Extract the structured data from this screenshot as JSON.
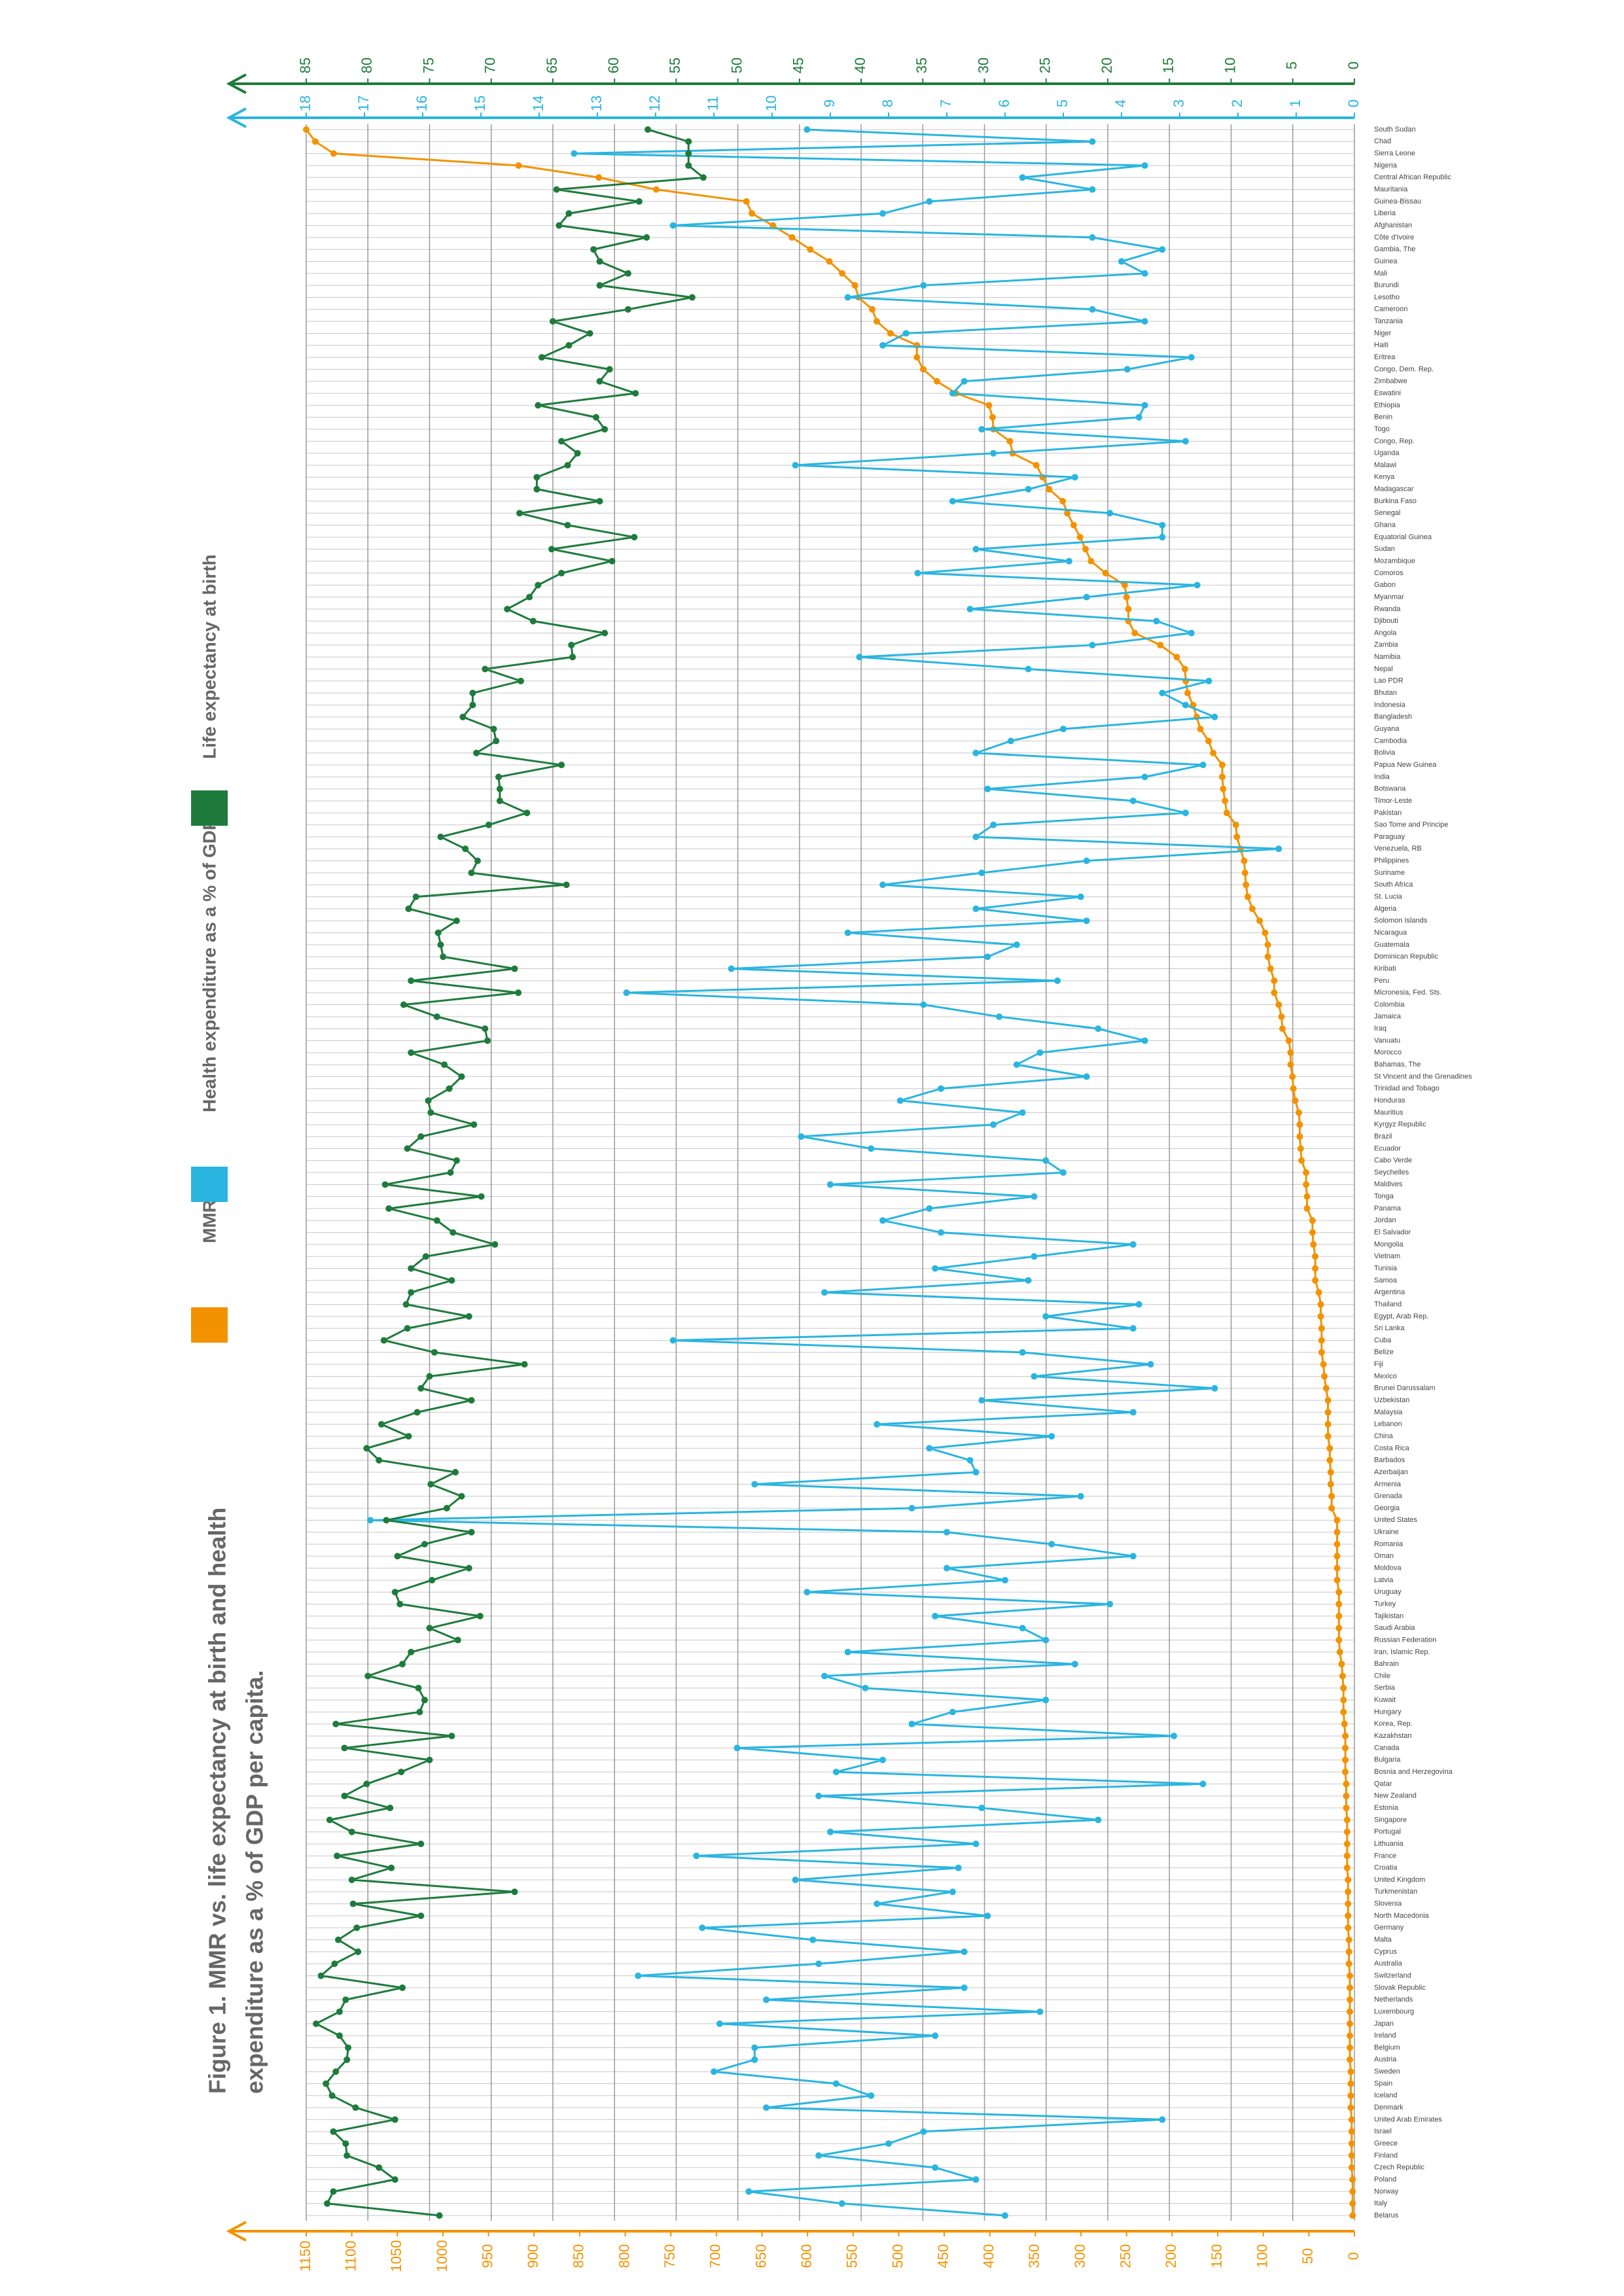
{
  "chart_data": {
    "type": "line",
    "title_lines": [
      "Figure 1. MMR vs. life expectancy at birth and health",
      "expenditure as a % of GDP per capita."
    ],
    "categories": [
      "South Sudan",
      "Chad",
      "Sierra Leone",
      "Nigeria",
      "Central African Republic",
      "Mauritania",
      "Guinea-Bissau",
      "Liberia",
      "Afghanistan",
      "Côte d'Ivoire",
      "Gambia, The",
      "Guinea",
      "Mali",
      "Burundi",
      "Lesotho",
      "Cameroon",
      "Tanzania",
      "Niger",
      "Haiti",
      "Eritrea",
      "Congo, Dem. Rep.",
      "Zimbabwe",
      "Eswatini",
      "Ethiopia",
      "Benin",
      "Togo",
      "Congo, Rep.",
      "Uganda",
      "Malawi",
      "Kenya",
      "Madagascar",
      "Burkina Faso",
      "Senegal",
      "Ghana",
      "Equatorial Guinea",
      "Sudan",
      "Mozambique",
      "Comoros",
      "Gabon",
      "Myanmar",
      "Rwanda",
      "Djibouti",
      "Angola",
      "Zambia",
      "Namibia",
      "Nepal",
      "Lao PDR",
      "Bhutan",
      "Indonesia",
      "Bangladesh",
      "Guyana",
      "Cambodia",
      "Bolivia",
      "Papua New Guinea",
      "India",
      "Botswana",
      "Timor-Leste",
      "Pakistan",
      "Sao Tome and Principe",
      "Paraguay",
      "Venezuela, RB",
      "Philippines",
      "Suriname",
      "South Africa",
      "St. Lucia",
      "Algeria",
      "Solomon Islands",
      "Nicaragua",
      "Guatemala",
      "Dominican Republic",
      "Kiribati",
      "Peru",
      "Micronesia, Fed. Sts.",
      "Colombia",
      "Jamaica",
      "Iraq",
      "Vanuatu",
      "Morocco",
      "Bahamas, The",
      "St Vincent and the Grenadines",
      "Trinidad and Tobago",
      "Honduras",
      "Mauritius",
      "Kyrgyz Republic",
      "Brazil",
      "Ecuador",
      "Cabo Verde",
      "Seychelles",
      "Maldives",
      "Tonga",
      "Panama",
      "Jordan",
      "El Salvador",
      "Mongolia",
      "Vietnam",
      "Tunisia",
      "Samoa",
      "Argentina",
      "Thailand",
      "Egypt, Arab Rep.",
      "Sri Lanka",
      "Cuba",
      "Belize",
      "Fiji",
      "Mexico",
      "Brunei Darussalam",
      "Uzbekistan",
      "Malaysia",
      "Lebanon",
      "China",
      "Costa Rica",
      "Barbados",
      "Azerbaijan",
      "Armenia",
      "Grenada",
      "Georgia",
      "United States",
      "Ukraine",
      "Romania",
      "Oman",
      "Moldova",
      "Latvia",
      "Uruguay",
      "Turkey",
      "Tajikistan",
      "Saudi Arabia",
      "Russian Federation",
      "Iran, Islamic Rep.",
      "Bahrain",
      "Chile",
      "Serbia",
      "Kuwait",
      "Hungary",
      "Korea, Rep.",
      "Kazakhstan",
      "Canada",
      "Bulgaria",
      "Bosnia and Herzegovina",
      "Qatar",
      "New Zealand",
      "Estonia",
      "Singapore",
      "Portugal",
      "Lithuania",
      "France",
      "Croatia",
      "United Kingdom",
      "Turkmenistan",
      "Slovenia",
      "North Macedonia",
      "Germany",
      "Malta",
      "Cyprus",
      "Australia",
      "Switzerland",
      "Slovak Republic",
      "Netherlands",
      "Luxembourg",
      "Japan",
      "Ireland",
      "Belgium",
      "Austria",
      "Sweden",
      "Spain",
      "Iceland",
      "Denmark",
      "United Arab Emirates",
      "Israel",
      "Greece",
      "Finland",
      "Czech Republic",
      "Poland",
      "Norway",
      "Italy",
      "Belarus"
    ],
    "series": [
      {
        "name": "MMR",
        "color": "#f39200",
        "axis": "y",
        "values": [
          1150,
          1140,
          1120,
          917,
          829,
          766,
          667,
          661,
          638,
          617,
          597,
          576,
          562,
          548,
          544,
          529,
          524,
          509,
          480,
          480,
          473,
          458,
          437,
          401,
          397,
          396,
          378,
          375,
          349,
          342,
          335,
          320,
          315,
          308,
          301,
          295,
          289,
          273,
          252,
          250,
          248,
          248,
          241,
          213,
          195,
          186,
          185,
          183,
          177,
          173,
          169,
          160,
          155,
          145,
          145,
          144,
          142,
          140,
          130,
          129,
          125,
          121,
          120,
          119,
          117,
          112,
          104,
          98,
          95,
          95,
          92,
          88,
          88,
          83,
          80,
          79,
          72,
          70,
          70,
          68,
          67,
          65,
          61,
          60,
          60,
          59,
          58,
          53,
          53,
          52,
          52,
          46,
          46,
          45,
          43,
          43,
          43,
          39,
          37,
          37,
          36,
          36,
          36,
          34,
          33,
          31,
          29,
          29,
          29,
          29,
          27,
          27,
          26,
          26,
          25,
          25,
          19,
          19,
          19,
          19,
          19,
          19,
          17,
          17,
          17,
          17,
          17,
          16,
          14,
          13,
          12,
          12,
          12,
          11,
          10,
          10,
          10,
          10,
          9,
          9,
          9,
          8,
          8,
          8,
          8,
          8,
          7,
          7,
          7,
          7,
          7,
          6,
          6,
          6,
          5,
          5,
          5,
          5,
          5,
          5,
          5,
          5,
          4,
          4,
          4,
          4,
          3,
          3,
          3,
          3,
          3,
          2,
          2,
          2,
          2
        ]
      },
      {
        "name": "Health expenditure as a % of GDP",
        "color": "#29b5e0",
        "axis": "y3",
        "values": [
          9.4,
          4.5,
          13.4,
          3.6,
          5.7,
          4.5,
          7.3,
          8.1,
          11.7,
          4.5,
          3.3,
          4.0,
          3.6,
          7.4,
          8.7,
          4.5,
          3.6,
          7.7,
          8.1,
          2.8,
          3.9,
          6.7,
          6.9,
          3.6,
          3.7,
          6.4,
          2.9,
          6.2,
          9.6,
          4.8,
          5.6,
          6.9,
          4.2,
          3.3,
          3.3,
          6.5,
          4.9,
          7.5,
          2.7,
          4.6,
          6.6,
          3.4,
          2.8,
          4.5,
          8.5,
          5.6,
          2.5,
          3.3,
          2.9,
          2.4,
          5,
          5.9,
          6.5,
          2.6,
          3.6,
          6.3,
          3.8,
          2.9,
          6.2,
          6.5,
          1.3,
          4.6,
          6.4,
          8.1,
          4.7,
          6.5,
          4.6,
          8.7,
          5.8,
          6.3,
          10.7,
          5.1,
          12.5,
          7.4,
          6.1,
          4.4,
          3.6,
          5.4,
          5.8,
          4.6,
          7.1,
          7.8,
          5.7,
          6.2,
          9.5,
          8.3,
          5.3,
          5,
          9,
          5.5,
          7.3,
          8.1,
          7.1,
          3.8,
          5.5,
          7.2,
          5.6,
          9.1,
          3.7,
          5.3,
          3.8,
          11.7,
          5.7,
          3.5,
          5.5,
          2.4,
          6.4,
          3.8,
          8.2,
          5.2,
          7.3,
          6.6,
          6.5,
          10.3,
          4.7,
          7.6,
          16.9,
          7,
          5.2,
          3.8,
          7,
          6,
          9.4,
          4.2,
          7.2,
          5.7,
          5.3,
          8.7,
          4.8,
          9.1,
          8.4,
          5.3,
          6.9,
          7.6,
          3.1,
          10.6,
          8.1,
          8.9,
          2.6,
          9.2,
          6.4,
          4.4,
          9,
          6.5,
          11.3,
          6.8,
          9.6,
          6.9,
          8.2,
          6.3,
          11.2,
          9.3,
          6.7,
          9.2,
          12.3,
          6.7,
          10.1,
          5.4,
          10.9,
          7.2,
          10.3,
          10.3,
          11,
          8.9,
          8.3,
          10.1,
          3.3,
          7.4,
          8,
          9.2,
          7.2,
          6.5,
          10.4,
          8.8,
          6
        ]
      },
      {
        "name": "Life expectancy at birth",
        "color": "#1e7b3c",
        "axis": "y2",
        "values": [
          57.3,
          54,
          54,
          54,
          52.8,
          64.7,
          58,
          63.7,
          64.5,
          57.4,
          61.7,
          61.2,
          58.9,
          61.2,
          53.7,
          58.9,
          65,
          62,
          63.7,
          65.9,
          60.4,
          61.2,
          58.3,
          66.2,
          61.5,
          60.8,
          64.3,
          63,
          63.8,
          66.3,
          66.3,
          61.2,
          67.7,
          63.8,
          58.4,
          65.1,
          60.2,
          64.3,
          66.2,
          66.9,
          68.7,
          66.6,
          60.8,
          63.5,
          63.4,
          70.5,
          67.6,
          71.5,
          71.5,
          72.3,
          69.8,
          69.6,
          71.2,
          64.3,
          69.4,
          69.3,
          69.3,
          67.1,
          70.2,
          74.1,
          72.1,
          71.1,
          71.6,
          63.9,
          76.1,
          76.7,
          72.8,
          74.3,
          74.1,
          73.9,
          68.1,
          76.5,
          67.8,
          77.1,
          74.4,
          70.5,
          70.3,
          76.5,
          73.8,
          72.4,
          73.4,
          75.1,
          74.9,
          71.4,
          75.7,
          76.8,
          72.8,
          73.3,
          78.6,
          70.8,
          78.3,
          74.4,
          73.1,
          69.7,
          75.3,
          76.5,
          73.2,
          76.5,
          76.9,
          71.8,
          76.8,
          78.7,
          74.6,
          67.3,
          75,
          75.7,
          71.6,
          76,
          78.9,
          76.7,
          80.1,
          79.1,
          72.9,
          74.9,
          72.4,
          73.6,
          78.5,
          71.6,
          75.4,
          77.6,
          71.8,
          74.8,
          77.8,
          77.4,
          70.9,
          75,
          72.7,
          76.5,
          77.2,
          80,
          75.9,
          75.4,
          75.8,
          82.6,
          73.2,
          81.9,
          75,
          77.3,
          80.1,
          81.9,
          78.2,
          83.1,
          81.3,
          75.7,
          82.5,
          78.1,
          81.3,
          68.1,
          81.2,
          75.7,
          80.9,
          82.4,
          80.8,
          82.7,
          83.8,
          77.2,
          81.8,
          82.3,
          84.2,
          82.3,
          81.6,
          81.7,
          82.6,
          83.4,
          82.9,
          81,
          77.8,
          82.8,
          81.8,
          81.7,
          79.1,
          77.8,
          82.8,
          83.3,
          74.2
        ]
      }
    ],
    "ylim": [
      0,
      1150
    ],
    "yticks": [
      0,
      50,
      100,
      150,
      200,
      250,
      300,
      350,
      400,
      450,
      500,
      550,
      600,
      650,
      700,
      750,
      800,
      850,
      900,
      950,
      1000,
      1050,
      1100,
      1150
    ],
    "y2lim": [
      0,
      85
    ],
    "y2ticks": [
      0,
      5,
      10,
      15,
      20,
      25,
      30,
      35,
      40,
      45,
      50,
      55,
      60,
      65,
      70,
      75,
      80,
      85
    ],
    "y3lim": [
      0,
      18
    ],
    "y3ticks": [
      0,
      1,
      2,
      3,
      4,
      5,
      6,
      7,
      8,
      9,
      10,
      11,
      12,
      13,
      14,
      15,
      16,
      17,
      18
    ],
    "grid": true
  }
}
